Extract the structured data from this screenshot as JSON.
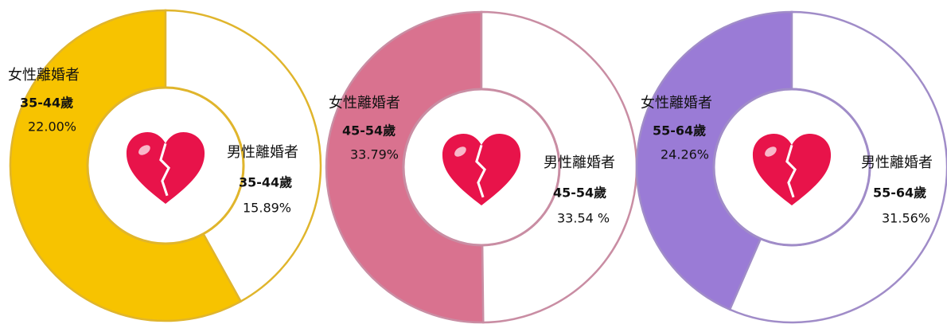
{
  "chart_data": [
    {
      "type": "pie",
      "group": "35-44歲",
      "categories": [
        "女性離婚者",
        "男性離婚者"
      ],
      "values": [
        22.0,
        15.89
      ],
      "value_labels": [
        "22.00%",
        "15.89%"
      ],
      "colors": [
        "#f7c300",
        "#ffffff"
      ],
      "outline": "#e0b52c"
    },
    {
      "type": "pie",
      "group": "45-54歲",
      "categories": [
        "女性離婚者",
        "男性離婚者"
      ],
      "values": [
        33.79,
        33.54
      ],
      "value_labels": [
        "33.79%",
        "33.54 %"
      ],
      "colors": [
        "#d9728f",
        "#ffffff"
      ],
      "outline": "#c98da3"
    },
    {
      "type": "pie",
      "group": "55-64歲",
      "categories": [
        "女性離婚者",
        "男性離婚者"
      ],
      "values": [
        24.26,
        31.56
      ],
      "value_labels": [
        "24.26%",
        "31.56%"
      ],
      "colors": [
        "#9a7bd6",
        "#ffffff"
      ],
      "outline": "#a08cc8"
    }
  ]
}
